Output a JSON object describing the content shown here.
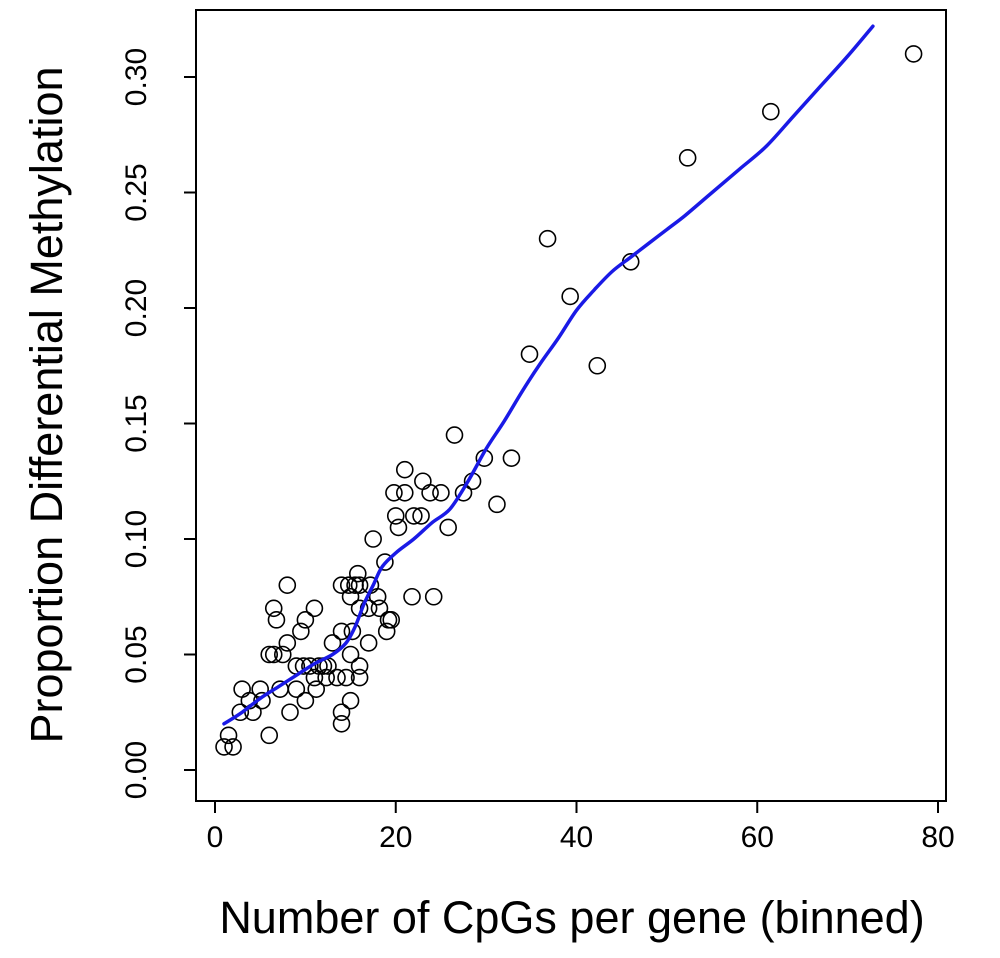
{
  "chart_data": {
    "type": "scatter",
    "title": "",
    "xlabel": "Number of CpGs per gene (binned)",
    "ylabel": "Proportion Differential Methylation",
    "xlim": [
      0,
      80
    ],
    "ylim": [
      0.0,
      0.32
    ],
    "xticks": [
      0,
      20,
      40,
      60,
      80
    ],
    "xtick_labels": [
      "0",
      "20",
      "40",
      "60",
      "80"
    ],
    "yticks": [
      0.0,
      0.05,
      0.1,
      0.15,
      0.2,
      0.25,
      0.3
    ],
    "ytick_labels": [
      "0.00",
      "0.05",
      "0.10",
      "0.15",
      "0.20",
      "0.25",
      "0.30"
    ],
    "grid": false,
    "legend": "none",
    "series": [
      {
        "type": "scatter",
        "marker": "open-circle",
        "color": "#000000",
        "points": [
          [
            1.0,
            0.01
          ],
          [
            1.5,
            0.015
          ],
          [
            2.0,
            0.01
          ],
          [
            2.8,
            0.025
          ],
          [
            3.0,
            0.035
          ],
          [
            3.8,
            0.03
          ],
          [
            4.2,
            0.025
          ],
          [
            5.0,
            0.035
          ],
          [
            5.2,
            0.03
          ],
          [
            6.0,
            0.05
          ],
          [
            6.0,
            0.015
          ],
          [
            6.5,
            0.05
          ],
          [
            6.5,
            0.07
          ],
          [
            6.8,
            0.065
          ],
          [
            7.2,
            0.035
          ],
          [
            7.5,
            0.05
          ],
          [
            8.0,
            0.08
          ],
          [
            8.0,
            0.055
          ],
          [
            8.3,
            0.025
          ],
          [
            9.0,
            0.045
          ],
          [
            9.0,
            0.035
          ],
          [
            9.5,
            0.06
          ],
          [
            9.8,
            0.045
          ],
          [
            10.0,
            0.03
          ],
          [
            10.0,
            0.065
          ],
          [
            10.5,
            0.045
          ],
          [
            11.0,
            0.04
          ],
          [
            11.0,
            0.07
          ],
          [
            11.2,
            0.035
          ],
          [
            11.5,
            0.045
          ],
          [
            12.0,
            0.045
          ],
          [
            12.3,
            0.04
          ],
          [
            12.5,
            0.045
          ],
          [
            13.0,
            0.055
          ],
          [
            13.5,
            0.04
          ],
          [
            14.0,
            0.025
          ],
          [
            14.0,
            0.02
          ],
          [
            14.0,
            0.06
          ],
          [
            14.0,
            0.08
          ],
          [
            14.5,
            0.04
          ],
          [
            14.8,
            0.08
          ],
          [
            15.0,
            0.075
          ],
          [
            15.0,
            0.05
          ],
          [
            15.0,
            0.03
          ],
          [
            15.2,
            0.06
          ],
          [
            15.5,
            0.08
          ],
          [
            15.8,
            0.085
          ],
          [
            16.0,
            0.08
          ],
          [
            16.0,
            0.07
          ],
          [
            16.0,
            0.045
          ],
          [
            16.0,
            0.04
          ],
          [
            17.0,
            0.07
          ],
          [
            17.0,
            0.055
          ],
          [
            17.2,
            0.08
          ],
          [
            17.5,
            0.1
          ],
          [
            18.0,
            0.075
          ],
          [
            18.2,
            0.07
          ],
          [
            18.8,
            0.09
          ],
          [
            19.0,
            0.06
          ],
          [
            19.2,
            0.065
          ],
          [
            19.5,
            0.065
          ],
          [
            19.8,
            0.12
          ],
          [
            20.0,
            0.11
          ],
          [
            20.3,
            0.105
          ],
          [
            21.0,
            0.13
          ],
          [
            21.0,
            0.12
          ],
          [
            21.8,
            0.075
          ],
          [
            22.0,
            0.11
          ],
          [
            22.8,
            0.11
          ],
          [
            23.0,
            0.125
          ],
          [
            23.8,
            0.12
          ],
          [
            24.2,
            0.075
          ],
          [
            25.0,
            0.12
          ],
          [
            25.8,
            0.105
          ],
          [
            26.5,
            0.145
          ],
          [
            27.5,
            0.12
          ],
          [
            28.5,
            0.125
          ],
          [
            29.8,
            0.135
          ],
          [
            31.2,
            0.115
          ],
          [
            32.8,
            0.135
          ],
          [
            34.8,
            0.18
          ],
          [
            36.8,
            0.23
          ],
          [
            39.3,
            0.205
          ],
          [
            42.3,
            0.175
          ],
          [
            46.0,
            0.22
          ],
          [
            52.3,
            0.265
          ],
          [
            61.5,
            0.285
          ],
          [
            77.3,
            0.31
          ]
        ]
      },
      {
        "type": "line",
        "style": "smooth-fit",
        "color": "#1a1ae6",
        "points": [
          [
            1.0,
            0.02
          ],
          [
            3.0,
            0.025
          ],
          [
            5.0,
            0.031
          ],
          [
            7.0,
            0.036
          ],
          [
            9.0,
            0.041
          ],
          [
            11.0,
            0.046
          ],
          [
            13.0,
            0.05
          ],
          [
            14.5,
            0.055
          ],
          [
            15.5,
            0.062
          ],
          [
            16.5,
            0.072
          ],
          [
            17.5,
            0.08
          ],
          [
            18.5,
            0.088
          ],
          [
            20.0,
            0.094
          ],
          [
            22.0,
            0.1
          ],
          [
            24.0,
            0.107
          ],
          [
            26.0,
            0.113
          ],
          [
            28.0,
            0.125
          ],
          [
            30.0,
            0.139
          ],
          [
            32.0,
            0.151
          ],
          [
            34.0,
            0.164
          ],
          [
            36.0,
            0.176
          ],
          [
            38.0,
            0.187
          ],
          [
            40.0,
            0.199
          ],
          [
            42.0,
            0.208
          ],
          [
            44.0,
            0.216
          ],
          [
            46.0,
            0.222
          ],
          [
            48.0,
            0.228
          ],
          [
            50.0,
            0.234
          ],
          [
            52.0,
            0.24
          ],
          [
            55.0,
            0.25
          ],
          [
            58.0,
            0.26
          ],
          [
            61.0,
            0.27
          ],
          [
            64.0,
            0.283
          ],
          [
            67.0,
            0.296
          ],
          [
            70.0,
            0.309
          ],
          [
            72.8,
            0.322
          ]
        ]
      }
    ]
  }
}
